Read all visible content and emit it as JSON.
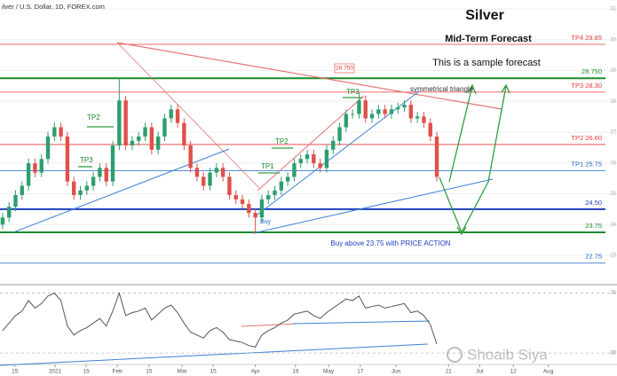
{
  "chart_data": [
    {
      "type": "candlestick",
      "title": "ilver / U.S. Dollar, 1D, FOREX.com",
      "up_color": "#2e9e6e",
      "down_color": "#e0504a",
      "ylim": [
        22.08,
        31.29
      ],
      "yticks": [
        23,
        24,
        25,
        26,
        27,
        28,
        29,
        30,
        31
      ],
      "grid": true,
      "open": [
        24.0,
        24.23,
        24.58,
        24.96,
        25.26,
        25.99,
        25.69,
        26.13,
        26.86,
        27.16,
        26.86,
        25.4,
        24.96,
        25.11,
        25.26,
        25.55,
        25.84,
        25.4,
        26.57,
        28.03,
        26.57,
        26.72,
        26.86,
        27.16,
        26.43,
        26.86,
        27.45,
        27.74,
        27.3,
        26.57,
        25.84,
        25.55,
        25.26,
        25.69,
        25.84,
        25.55,
        24.96,
        24.82,
        24.67,
        24.38,
        24.23,
        24.82,
        24.96,
        25.11,
        25.4,
        25.55,
        25.99,
        26.13,
        26.28,
        25.99,
        25.84,
        26.43,
        26.72,
        27.16,
        27.59,
        27.59,
        28.03,
        27.45,
        27.59,
        27.74,
        27.59,
        27.74,
        27.8,
        27.89,
        27.45,
        27.51,
        27.3,
        26.86
      ],
      "high": [
        24.38,
        24.73,
        25.11,
        25.41,
        26.14,
        26.14,
        26.28,
        27.01,
        27.31,
        27.31,
        27.01,
        25.55,
        25.26,
        25.41,
        25.7,
        25.99,
        25.99,
        26.72,
        28.76,
        28.18,
        26.87,
        27.01,
        27.31,
        27.31,
        27.01,
        27.6,
        27.89,
        27.89,
        27.45,
        26.72,
        25.99,
        25.7,
        25.84,
        25.99,
        25.99,
        25.7,
        25.11,
        24.97,
        24.82,
        24.53,
        24.97,
        25.11,
        25.26,
        25.55,
        25.7,
        26.14,
        26.28,
        26.43,
        26.43,
        26.14,
        26.58,
        26.87,
        27.31,
        27.74,
        27.74,
        28.3,
        28.18,
        27.74,
        27.89,
        27.89,
        27.89,
        27.95,
        28.04,
        28.04,
        27.66,
        27.66,
        27.45,
        27.01
      ],
      "low": [
        23.85,
        24.08,
        24.43,
        24.81,
        25.11,
        25.54,
        25.54,
        25.98,
        26.71,
        26.71,
        25.25,
        24.81,
        24.81,
        24.96,
        25.11,
        25.4,
        25.25,
        25.25,
        26.42,
        26.42,
        26.42,
        26.57,
        26.71,
        26.28,
        26.28,
        26.71,
        27.3,
        27.15,
        26.42,
        25.69,
        25.4,
        25.11,
        25.11,
        25.54,
        25.4,
        24.81,
        24.67,
        24.52,
        24.23,
        23.71,
        24.08,
        24.67,
        24.81,
        24.96,
        25.25,
        25.4,
        25.84,
        25.98,
        25.84,
        25.69,
        25.69,
        26.28,
        26.57,
        27.01,
        27.44,
        27.44,
        27.3,
        27.3,
        27.44,
        27.44,
        27.44,
        27.59,
        27.65,
        27.3,
        27.3,
        27.15,
        26.71,
        25.4
      ],
      "close": [
        24.23,
        24.58,
        24.96,
        25.26,
        25.99,
        25.69,
        26.13,
        26.86,
        27.16,
        26.86,
        25.4,
        24.96,
        25.11,
        25.26,
        25.55,
        25.84,
        25.4,
        26.57,
        28.03,
        26.57,
        26.72,
        26.86,
        27.16,
        26.43,
        26.86,
        27.45,
        27.74,
        27.3,
        26.57,
        25.84,
        25.55,
        25.26,
        25.69,
        25.84,
        25.55,
        24.96,
        24.82,
        24.67,
        24.38,
        24.23,
        24.82,
        24.96,
        25.11,
        25.4,
        25.55,
        25.99,
        26.13,
        26.28,
        25.99,
        25.84,
        26.43,
        26.72,
        27.16,
        27.59,
        27.59,
        28.03,
        27.45,
        27.59,
        27.74,
        27.59,
        27.74,
        27.8,
        27.89,
        27.45,
        27.51,
        27.3,
        26.86,
        25.55
      ],
      "levels": [
        {
          "label": "TP4 29.85",
          "value": 29.85,
          "color": "#e53935"
        },
        {
          "label": "28.750",
          "value": 28.75,
          "color": "#1b8a2a",
          "thick": true
        },
        {
          "label": "TP3 28.30",
          "value": 28.3,
          "color": "#e53935"
        },
        {
          "label": "TP2 26.60",
          "value": 26.6,
          "color": "#e53935"
        },
        {
          "label": "TP1 25.75",
          "value": 25.75,
          "color": "#1e66c8"
        },
        {
          "label": "24.50",
          "value": 24.5,
          "color": "#1e3fbf",
          "thick": true
        },
        {
          "label": "23.75",
          "value": 23.75,
          "color": "#1b8a2a",
          "thick": true
        },
        {
          "label": "22.75",
          "value": 22.75,
          "color": "#1e66c8"
        }
      ],
      "annotations": [
        "Silver",
        "Mid-Term Forecast",
        "This is a sample forecast",
        "symmetrical triangle",
        "TP3",
        "TP2",
        "TP1",
        "TP2",
        "TP3",
        "Buy",
        "Buy above 23.75 with PRICE ACTION",
        "28.750",
        "Shoaib Siya"
      ]
    },
    {
      "type": "line",
      "color": "#555555",
      "values": [
        45,
        50,
        55,
        58,
        65,
        60,
        63,
        68,
        70,
        65,
        48,
        42,
        45,
        47,
        50,
        53,
        48,
        58,
        70,
        55,
        57,
        58,
        60,
        52,
        56,
        60,
        62,
        57,
        50,
        44,
        42,
        40,
        45,
        47,
        44,
        39,
        38,
        37,
        35,
        34,
        42,
        45,
        47,
        50,
        52,
        56,
        57,
        58,
        55,
        53,
        57,
        60,
        63,
        66,
        65,
        68,
        60,
        61,
        62,
        60,
        61,
        62,
        63,
        57,
        58,
        55,
        49,
        36
      ],
      "ylim": [
        23,
        75
      ],
      "yticks": [
        30,
        70
      ],
      "xlim": [
        -0.4,
        94.8
      ],
      "xticks": [
        {
          "value": 1.9,
          "label": "15"
        },
        {
          "value": 8.1,
          "label": "2021"
        },
        {
          "value": 12.9,
          "label": "15"
        },
        {
          "value": 17.7,
          "label": "Feb"
        },
        {
          "value": 22.6,
          "label": "15"
        },
        {
          "value": 27.7,
          "label": "Mar"
        },
        {
          "value": 32.5,
          "label": "15"
        },
        {
          "value": 39,
          "label": "Apr"
        },
        {
          "value": 45.2,
          "label": "19"
        },
        {
          "value": 50.3,
          "label": "May"
        },
        {
          "value": 55.2,
          "label": "17"
        },
        {
          "value": 60.7,
          "label": "Jun"
        },
        {
          "value": 68.8,
          "label": "21"
        },
        {
          "value": 73.6,
          "label": "Jul"
        },
        {
          "value": 78.8,
          "label": "12"
        },
        {
          "value": 84.2,
          "label": "Aug"
        }
      ]
    }
  ]
}
